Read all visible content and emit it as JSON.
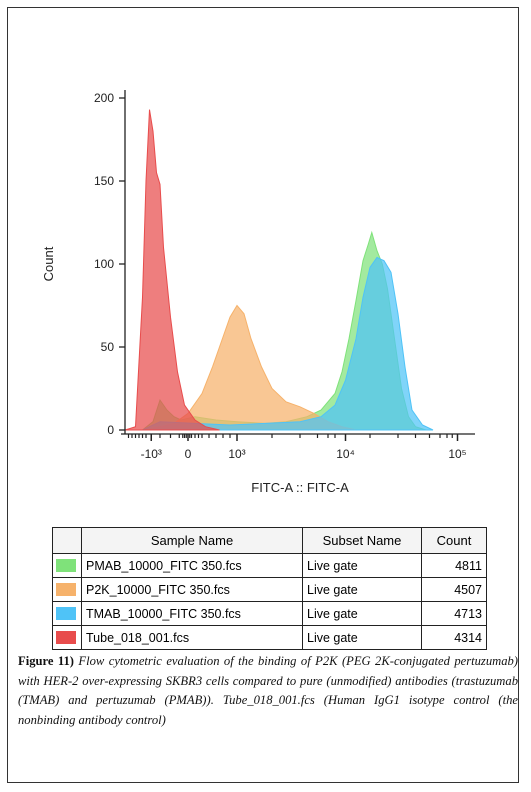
{
  "chart_data": {
    "type": "area",
    "xlabel": "FITC-A :: FITC-A",
    "ylabel": "Count",
    "ylim": [
      0,
      200
    ],
    "y_ticks": [
      0,
      50,
      100,
      150,
      200
    ],
    "x_ticks": [
      "-10³",
      "0",
      "10³",
      "10⁴",
      "10⁵"
    ],
    "x_scale": "biexponential",
    "series": [
      {
        "name": "PMAB_10000_FITC 350.fcs",
        "color": "#7fe27a",
        "points": [
          [
            0,
            0
          ],
          [
            0.05,
            0
          ],
          [
            0.08,
            5
          ],
          [
            0.1,
            18
          ],
          [
            0.12,
            12
          ],
          [
            0.14,
            8
          ],
          [
            0.16,
            6
          ],
          [
            0.2,
            8
          ],
          [
            0.26,
            6
          ],
          [
            0.32,
            5
          ],
          [
            0.4,
            4
          ],
          [
            0.46,
            5
          ],
          [
            0.52,
            8
          ],
          [
            0.56,
            12
          ],
          [
            0.6,
            22
          ],
          [
            0.62,
            35
          ],
          [
            0.64,
            55
          ],
          [
            0.66,
            78
          ],
          [
            0.68,
            102
          ],
          [
            0.695,
            112
          ],
          [
            0.705,
            119
          ],
          [
            0.72,
            108
          ],
          [
            0.735,
            100
          ],
          [
            0.75,
            85
          ],
          [
            0.77,
            55
          ],
          [
            0.79,
            25
          ],
          [
            0.81,
            8
          ],
          [
            0.83,
            2
          ],
          [
            0.86,
            0
          ]
        ]
      },
      {
        "name": "P2K_10000_FITC 350.fcs",
        "color": "#f6b26b",
        "points": [
          [
            0,
            0
          ],
          [
            0.05,
            0
          ],
          [
            0.1,
            2
          ],
          [
            0.14,
            4
          ],
          [
            0.18,
            10
          ],
          [
            0.22,
            22
          ],
          [
            0.25,
            38
          ],
          [
            0.28,
            56
          ],
          [
            0.3,
            68
          ],
          [
            0.32,
            75
          ],
          [
            0.34,
            70
          ],
          [
            0.36,
            55
          ],
          [
            0.39,
            38
          ],
          [
            0.42,
            25
          ],
          [
            0.46,
            17
          ],
          [
            0.5,
            14
          ],
          [
            0.54,
            10
          ],
          [
            0.58,
            5
          ],
          [
            0.62,
            2
          ],
          [
            0.66,
            0
          ]
        ]
      },
      {
        "name": "TMAB_10000_FITC 350.fcs",
        "color": "#4fc3f7",
        "points": [
          [
            0,
            0
          ],
          [
            0.05,
            0
          ],
          [
            0.1,
            5
          ],
          [
            0.2,
            4
          ],
          [
            0.3,
            3
          ],
          [
            0.4,
            4
          ],
          [
            0.5,
            5
          ],
          [
            0.56,
            8
          ],
          [
            0.6,
            15
          ],
          [
            0.63,
            30
          ],
          [
            0.66,
            55
          ],
          [
            0.68,
            80
          ],
          [
            0.7,
            98
          ],
          [
            0.72,
            104
          ],
          [
            0.74,
            102
          ],
          [
            0.76,
            95
          ],
          [
            0.78,
            70
          ],
          [
            0.8,
            38
          ],
          [
            0.82,
            12
          ],
          [
            0.85,
            3
          ],
          [
            0.88,
            0
          ]
        ]
      },
      {
        "name": "Tube_018_001.fcs",
        "color": "#e84c4c",
        "points": [
          [
            0,
            0
          ],
          [
            0.03,
            2
          ],
          [
            0.05,
            80
          ],
          [
            0.06,
            150
          ],
          [
            0.07,
            193
          ],
          [
            0.08,
            180
          ],
          [
            0.09,
            155
          ],
          [
            0.1,
            148
          ],
          [
            0.11,
            110
          ],
          [
            0.13,
            68
          ],
          [
            0.15,
            35
          ],
          [
            0.17,
            15
          ],
          [
            0.2,
            6
          ],
          [
            0.23,
            2
          ],
          [
            0.27,
            0
          ]
        ]
      }
    ]
  },
  "legend": {
    "headers": [
      "Sample Name",
      "Subset Name",
      "Count"
    ],
    "rows": [
      {
        "color": "#7fe27a",
        "sample": "PMAB_10000_FITC 350.fcs",
        "subset": "Live gate",
        "count": "4811"
      },
      {
        "color": "#f6b26b",
        "sample": "P2K_10000_FITC 350.fcs",
        "subset": "Live gate",
        "count": "4507"
      },
      {
        "color": "#4fc3f7",
        "sample": "TMAB_10000_FITC 350.fcs",
        "subset": "Live gate",
        "count": "4713"
      },
      {
        "color": "#e84c4c",
        "sample": "Tube_018_001.fcs",
        "subset": "Live gate",
        "count": "4314"
      }
    ]
  },
  "caption": {
    "label": "Figure 11)",
    "text": "Flow cytometric evaluation of the binding of P2K (PEG 2K-conjugated pertuzumab) with HER-2 over-expressing SKBR3 cells compared to pure (unmodified) antibodies (trastuzumab (TMAB) and pertuzumab (PMAB)). Tube_018_001.fcs (Human IgG1 isotype control (the nonbinding antibody control)"
  }
}
